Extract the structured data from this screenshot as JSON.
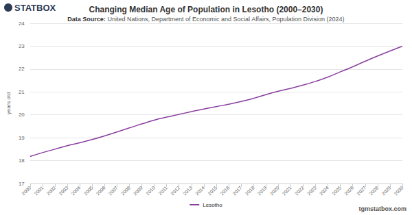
{
  "chart_data": {
    "type": "line",
    "title": "Changing Median Age of Population in Lesotho (2000–2030)",
    "subtitle": "Data Source: United Nations, Department of Economic and Social Affairs, Population Division (2024)",
    "logo": "STATBOX",
    "footer": "tgmstatbox.com",
    "y_label": "years old",
    "categories": [
      "2000",
      "2001",
      "2002",
      "2003",
      "2004",
      "2005",
      "2006",
      "2007",
      "2008",
      "2009",
      "2010",
      "2011",
      "2012",
      "2013",
      "2014",
      "2015",
      "2016",
      "2017",
      "2018",
      "2019",
      "2020",
      "2021",
      "2022",
      "2023",
      "2024",
      "2025",
      "2026",
      "2027",
      "2028",
      "2029",
      "2030"
    ],
    "series": [
      {
        "name": "Lesotho",
        "color": "#8a3f9e",
        "values": [
          18.18,
          18.35,
          18.5,
          18.65,
          18.78,
          18.92,
          19.08,
          19.25,
          19.43,
          19.6,
          19.77,
          19.9,
          20.02,
          20.14,
          20.25,
          20.36,
          20.46,
          20.58,
          20.72,
          20.88,
          21.03,
          21.16,
          21.3,
          21.46,
          21.65,
          21.88,
          22.1,
          22.34,
          22.57,
          22.79,
          23.0
        ]
      }
    ],
    "ylim": [
      17,
      24
    ],
    "yticks": [
      17,
      18,
      19,
      20,
      21,
      22,
      23,
      24
    ],
    "grid": true,
    "legend": "bottom"
  }
}
